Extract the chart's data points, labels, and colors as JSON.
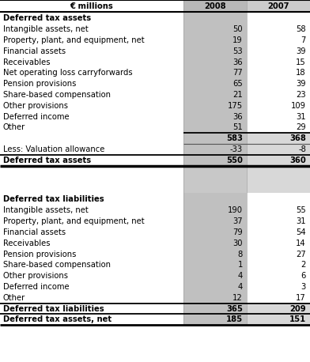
{
  "header": [
    "€ millions",
    "2008",
    "2007"
  ],
  "section1_title": "Deferred tax assets",
  "section1_rows": [
    [
      "Intangible assets, net",
      "50",
      "58"
    ],
    [
      "Property, plant, and equipment, net",
      "19",
      "7"
    ],
    [
      "Financial assets",
      "53",
      "39"
    ],
    [
      "Receivables",
      "36",
      "15"
    ],
    [
      "Net operating loss carryforwards",
      "77",
      "18"
    ],
    [
      "Pension provisions",
      "65",
      "39"
    ],
    [
      "Share-based compensation",
      "21",
      "23"
    ],
    [
      "Other provisions",
      "175",
      "109"
    ],
    [
      "Deferred income",
      "36",
      "31"
    ],
    [
      "Other",
      "51",
      "29"
    ]
  ],
  "subtotal1_row": [
    "",
    "583",
    "368"
  ],
  "valuation_row": [
    "Less: Valuation allowance",
    "-33",
    "-8"
  ],
  "total1_row": [
    "Deferred tax assets",
    "550",
    "360"
  ],
  "section2_title": "Deferred tax liabilities",
  "section2_rows": [
    [
      "Intangible assets, net",
      "190",
      "55"
    ],
    [
      "Property, plant, and equipment, net",
      "37",
      "31"
    ],
    [
      "Financial assets",
      "79",
      "54"
    ],
    [
      "Receivables",
      "30",
      "14"
    ],
    [
      "Pension provisions",
      "8",
      "27"
    ],
    [
      "Share-based compensation",
      "1",
      "2"
    ],
    [
      "Other provisions",
      "4",
      "6"
    ],
    [
      "Deferred income",
      "4",
      "3"
    ],
    [
      "Other",
      "12",
      "17"
    ]
  ],
  "total2_row": [
    "Deferred tax liabilities",
    "365",
    "209"
  ],
  "net_row": [
    "Deferred tax assets, net",
    "185",
    "151"
  ],
  "col2008_bg": "#c0c0c0",
  "col2007_bg": "#d8d8d8",
  "header_2008_bg": "#b8b8b8",
  "gap_2008_bg": "#c8c8c8",
  "gap_2007_bg": "#d0d0d0",
  "bold_line_color": "#000000",
  "thin_line_color": "#555555",
  "text_color": "#000000",
  "font_size": 7.2
}
